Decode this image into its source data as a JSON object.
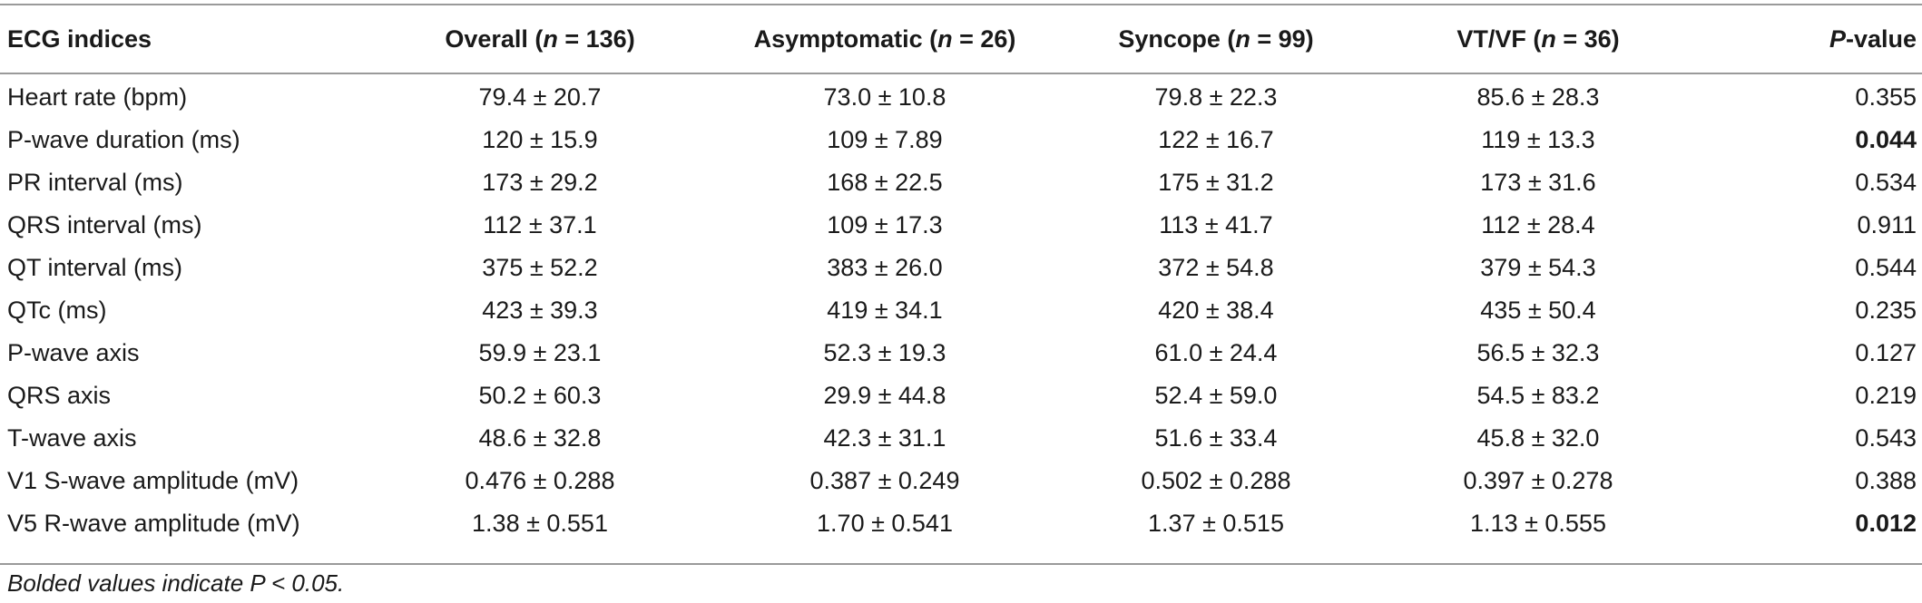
{
  "table": {
    "headers": [
      {
        "text": "ECG indices"
      },
      {
        "pre": "Overall (",
        "var": "n",
        "post": " = 136)"
      },
      {
        "pre": "Asymptomatic (",
        "var": "n",
        "post": " = 26)"
      },
      {
        "pre": "Syncope (",
        "var": "n",
        "post": " = 99)"
      },
      {
        "pre": "VT/VF (",
        "var": "n",
        "post": " = 36)"
      },
      {
        "pre": "",
        "var": "P",
        "post": "-value"
      }
    ],
    "rows": [
      {
        "label": "Heart rate (bpm)",
        "overall": "79.4 ± 20.7",
        "asymptomatic": "73.0 ± 10.8",
        "syncope": "79.8 ± 22.3",
        "vtvf": "85.6 ± 28.3",
        "p": "0.355",
        "p_bold": false
      },
      {
        "label": "P-wave duration (ms)",
        "overall": "120 ± 15.9",
        "asymptomatic": "109 ± 7.89",
        "syncope": "122 ± 16.7",
        "vtvf": "119 ± 13.3",
        "p": "0.044",
        "p_bold": true
      },
      {
        "label": "PR interval (ms)",
        "overall": "173 ± 29.2",
        "asymptomatic": "168 ± 22.5",
        "syncope": "175 ± 31.2",
        "vtvf": "173 ± 31.6",
        "p": "0.534",
        "p_bold": false
      },
      {
        "label": "QRS interval (ms)",
        "overall": "112 ± 37.1",
        "asymptomatic": "109 ± 17.3",
        "syncope": "113 ± 41.7",
        "vtvf": "112 ± 28.4",
        "p": "0.911",
        "p_bold": false
      },
      {
        "label": "QT interval (ms)",
        "overall": "375 ± 52.2",
        "asymptomatic": "383 ± 26.0",
        "syncope": "372 ± 54.8",
        "vtvf": "379 ± 54.3",
        "p": "0.544",
        "p_bold": false
      },
      {
        "label": "QTc (ms)",
        "overall": "423 ± 39.3",
        "asymptomatic": "419 ± 34.1",
        "syncope": "420 ± 38.4",
        "vtvf": "435 ± 50.4",
        "p": "0.235",
        "p_bold": false
      },
      {
        "label": "P-wave axis",
        "overall": "59.9 ± 23.1",
        "asymptomatic": "52.3 ± 19.3",
        "syncope": "61.0 ± 24.4",
        "vtvf": "56.5 ± 32.3",
        "p": "0.127",
        "p_bold": false
      },
      {
        "label": "QRS axis",
        "overall": "50.2 ± 60.3",
        "asymptomatic": "29.9 ± 44.8",
        "syncope": "52.4 ± 59.0",
        "vtvf": "54.5 ± 83.2",
        "p": "0.219",
        "p_bold": false
      },
      {
        "label": "T-wave axis",
        "overall": "48.6 ± 32.8",
        "asymptomatic": "42.3 ± 31.1",
        "syncope": "51.6 ± 33.4",
        "vtvf": "45.8 ± 32.0",
        "p": "0.543",
        "p_bold": false
      },
      {
        "label": "V1 S-wave amplitude (mV)",
        "overall": "0.476 ± 0.288",
        "asymptomatic": "0.387 ± 0.249",
        "syncope": "0.502 ± 0.288",
        "vtvf": "0.397 ± 0.278",
        "p": "0.388",
        "p_bold": false
      },
      {
        "label": "V5 R-wave amplitude (mV)",
        "overall": "1.38 ± 0.551",
        "asymptomatic": "1.70 ± 0.541",
        "syncope": "1.37 ± 0.515",
        "vtvf": "1.13 ± 0.555",
        "p": "0.012",
        "p_bold": true
      }
    ]
  },
  "footnote": "Bolded values indicate P < 0.05."
}
